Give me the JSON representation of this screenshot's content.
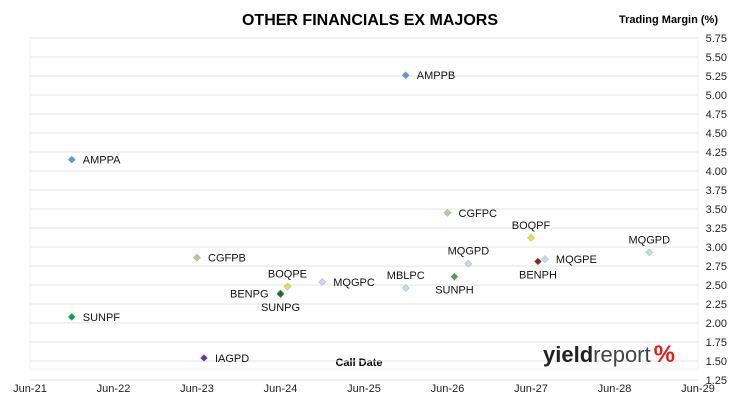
{
  "chart_data": {
    "type": "scatter",
    "title": "OTHER FINANCIALS EX MAJORS",
    "ylabel": "Trading Margin (%)",
    "xlabel": "Call Date",
    "x_ticks": [
      "Jun-21",
      "Jun-22",
      "Jun-23",
      "Jun-24",
      "Jun-25",
      "Jun-26",
      "Jun-27",
      "Jun-28",
      "Jun-29"
    ],
    "xlim": [
      "Jun-21",
      "Jun-29"
    ],
    "y_ticks": [
      "1.25",
      "1.50",
      "1.75",
      "2.00",
      "2.25",
      "2.50",
      "2.75",
      "3.00",
      "3.25",
      "3.50",
      "3.75",
      "4.00",
      "4.25",
      "4.50",
      "4.75",
      "5.00",
      "5.25",
      "5.50",
      "5.75"
    ],
    "ylim": [
      1.25,
      5.75
    ],
    "grid": "horizontal",
    "points": [
      {
        "label": "AMPPB",
        "x": "Dec-25",
        "y": 5.26,
        "color": "#5b9bd5",
        "label_pos": "right"
      },
      {
        "label": "AMPPA",
        "x": "Dec-21",
        "y": 4.15,
        "color": "#5b9bd5",
        "label_pos": "right"
      },
      {
        "label": "CGFPC",
        "x": "Jun-26",
        "y": 3.45,
        "color": "#a9d18e",
        "label_pos": "right"
      },
      {
        "label": "BOQPF",
        "x": "Jun-27",
        "y": 3.12,
        "color": "#e2e250",
        "label_pos": "above"
      },
      {
        "label": "MQGPD",
        "x": "Nov-28",
        "y": 2.93,
        "color": "#c9d9f2",
        "label_pos": "above"
      },
      {
        "label": "CGFPB",
        "x": "Jun-23",
        "y": 2.86,
        "color": "#a9d18e",
        "label_pos": "right"
      },
      {
        "label": "MQGPE",
        "x": "Aug-27",
        "y": 2.84,
        "color": "#c9d9f2",
        "label_pos": "right"
      },
      {
        "label": "BENPH",
        "x": "Jul-27",
        "y": 2.81,
        "color": "#7b2b1f",
        "label_pos": "below"
      },
      {
        "label": "MQGPD",
        "x": "Sep-26",
        "y": 2.78,
        "color": "#c9d9f2",
        "label_pos": "above"
      },
      {
        "label": "SUNPH",
        "x": "Jul-26",
        "y": 2.61,
        "color": "#4ea24e",
        "label_pos": "below"
      },
      {
        "label": "MQGPC",
        "x": "Dec-24",
        "y": 2.54,
        "color": "#c9d9f2",
        "label_pos": "right"
      },
      {
        "label": "BOQPE",
        "x": "Jul-24",
        "y": 2.48,
        "color": "#e2e250",
        "label_pos": "above"
      },
      {
        "label": "MBLPC",
        "x": "Dec-25",
        "y": 2.46,
        "color": "#c9d9f2",
        "label_pos": "above"
      },
      {
        "label": "BENPG",
        "x": "Jun-24",
        "y": 2.39,
        "color": "#1e6b2f",
        "label_pos": "left"
      },
      {
        "label": "SUNPG",
        "x": "Jun-24",
        "y": 2.38,
        "color": "#1e6b2f",
        "label_pos": "below"
      },
      {
        "label": "SUNPF",
        "x": "Dec-21",
        "y": 2.08,
        "color": "#00a651",
        "label_pos": "right"
      },
      {
        "label": "IAGPD",
        "x": "Jul-23",
        "y": 1.54,
        "color": "#7030a0",
        "label_pos": "right"
      }
    ]
  },
  "watermark": {
    "text_bold": "yield",
    "text_light": "report",
    "symbol": "%",
    "colors": {
      "bold": "#222222",
      "light": "#444444",
      "symbol": "#e0201b"
    }
  }
}
